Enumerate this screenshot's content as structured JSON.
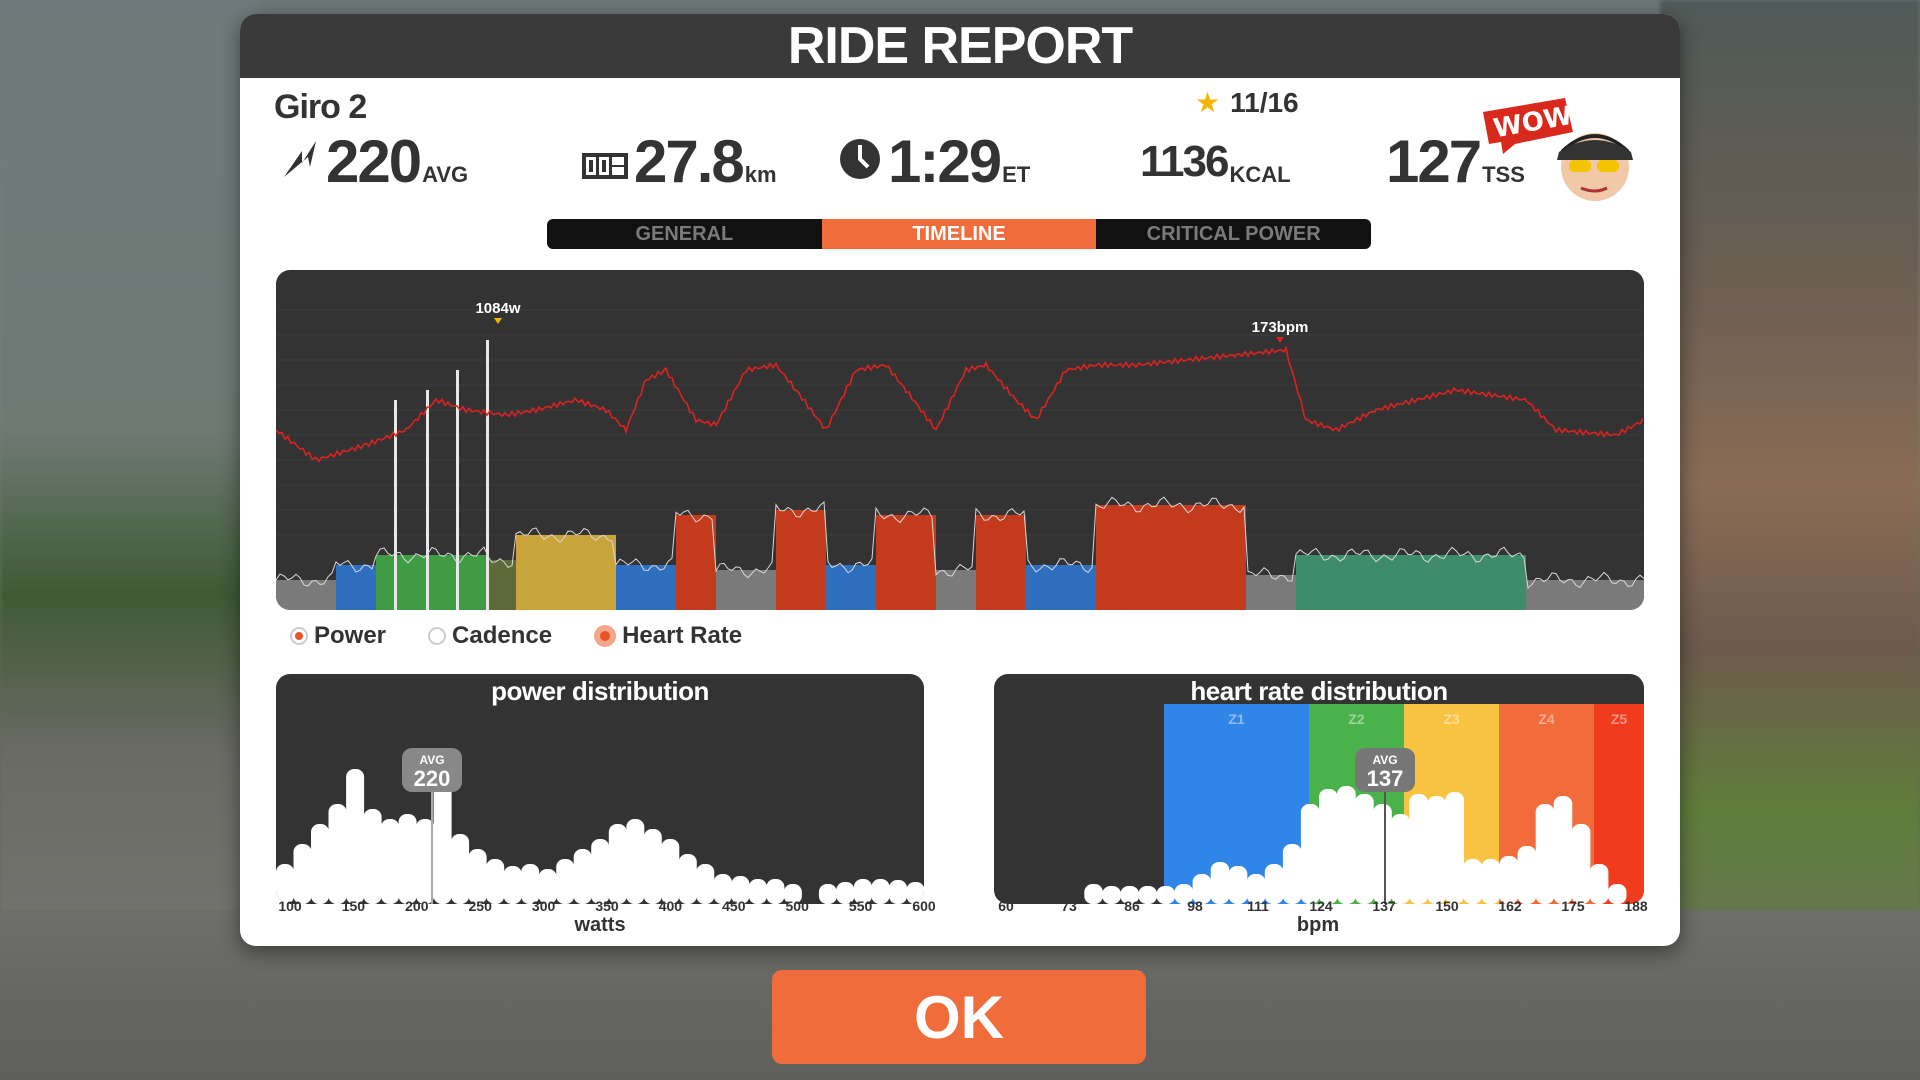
{
  "header": {
    "title": "RIDE REPORT"
  },
  "route": {
    "name": "Giro 2"
  },
  "rating": {
    "value": "11/16",
    "icon": "star-icon",
    "color": "#f3b500"
  },
  "stats": {
    "power": {
      "value": "220",
      "unit": "AVG",
      "icon": "power-bolt-icon"
    },
    "distance": {
      "value": "27.8",
      "unit": "km",
      "icon": "odometer-icon"
    },
    "time": {
      "value": "1:29",
      "unit": "ET",
      "icon": "clock-icon"
    },
    "calories": {
      "value": "1136",
      "unit": "KCAL"
    },
    "tss": {
      "value": "127",
      "unit": "TSS"
    }
  },
  "badge": {
    "text": "WOW!",
    "icon": "avatar-wow-icon"
  },
  "tabs": [
    {
      "label": "GENERAL",
      "active": false
    },
    {
      "label": "TIMELINE",
      "active": true
    },
    {
      "label": "CRITICAL POWER",
      "active": false
    }
  ],
  "timeline": {
    "peak_power_label": "1084w",
    "peak_hr_label": "173bpm"
  },
  "legend": [
    {
      "label": "Power",
      "checked": true
    },
    {
      "label": "Cadence",
      "checked": false
    },
    {
      "label": "Heart Rate",
      "checked": true
    }
  ],
  "power_distribution": {
    "title": "power distribution",
    "avg_label": "AVG",
    "avg_value": "220",
    "xlabel": "watts",
    "ticks": [
      "100",
      "150",
      "200",
      "250",
      "300",
      "350",
      "400",
      "450",
      "500",
      "550",
      "600"
    ]
  },
  "hr_distribution": {
    "title": "heart rate distribution",
    "avg_label": "AVG",
    "avg_value": "137",
    "xlabel": "bpm",
    "ticks": [
      "60",
      "73",
      "86",
      "98",
      "111",
      "124",
      "137",
      "150",
      "162",
      "175",
      "188"
    ],
    "zones": [
      {
        "label": "Z1",
        "color": "#2f86e8"
      },
      {
        "label": "Z2",
        "color": "#49b24a"
      },
      {
        "label": "Z3",
        "color": "#f7c340"
      },
      {
        "label": "Z4",
        "color": "#f26b3a"
      },
      {
        "label": "Z5",
        "color": "#f03c1c"
      }
    ]
  },
  "ok_button": {
    "label": "OK",
    "color": "#f06c3b"
  }
}
